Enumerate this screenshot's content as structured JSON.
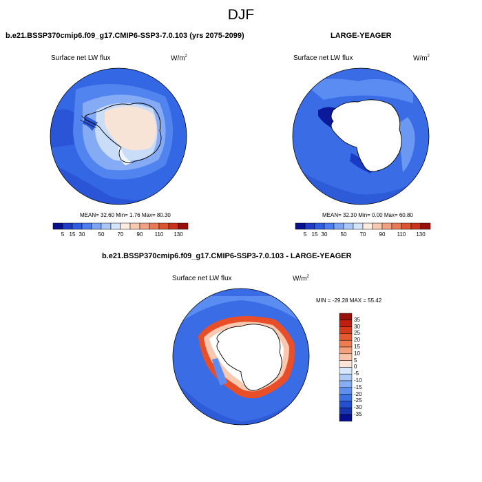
{
  "title": "DJF",
  "panels": [
    {
      "title": "b.e21.BSSP370cmip6.f09_g17.CMIP6-SSP3-7.0.103 (yrs 2075-2099)",
      "variable": "Surface net LW flux",
      "units_base": "W/m",
      "units_exp": "2",
      "stats_text": "MEAN=  32.60  Min=   1.76  Max=  80.30",
      "stats": {
        "mean": 32.6,
        "min": 1.76,
        "max": 80.3
      }
    },
    {
      "title": "LARGE-YEAGER",
      "variable": "Surface net LW flux",
      "units_base": "W/m",
      "units_exp": "2",
      "stats_text": "MEAN=  32.30  Min=   0.00  Max=  60.80",
      "stats": {
        "mean": 32.3,
        "min": 0.0,
        "max": 60.8
      }
    },
    {
      "title": "b.e21.BSSP370cmip6.f09_g17.CMIP6-SSP3-7.0.103 - LARGE-YEAGER",
      "variable": "Surface net LW flux",
      "units_base": "W/m",
      "units_exp": "2",
      "stats_text": "MIN = -29.28 MAX =  55.42",
      "stats": {
        "min": -29.28,
        "max": 55.42
      }
    }
  ],
  "colorbar_abs": {
    "tick_labels": [
      "5",
      "15",
      "30",
      "50",
      "70",
      "90",
      "110",
      "130"
    ],
    "colors": [
      "#08108f",
      "#1e3cc8",
      "#2e5ee0",
      "#4c7ef0",
      "#7ca6f5",
      "#a9c8f8",
      "#d4e4fb",
      "#fdebe0",
      "#f8c8b0",
      "#f2a283",
      "#ea7a55",
      "#dd5530",
      "#c8331a",
      "#98100a"
    ]
  },
  "colorbar_diff": {
    "tick_labels": [
      "35",
      "30",
      "25",
      "20",
      "15",
      "10",
      "5",
      "0",
      "-5",
      "-10",
      "-15",
      "-20",
      "-25",
      "-30",
      "-35"
    ],
    "colors": [
      "#98100a",
      "#bd2010",
      "#d63a1c",
      "#e65a30",
      "#ef7b50",
      "#f59f7c",
      "#f9c4aa",
      "#fde6d8",
      "#d8e7fb",
      "#aecbf8",
      "#86aef5",
      "#5f90f0",
      "#3d70e3",
      "#2550cf",
      "#1534ad",
      "#08108f"
    ]
  },
  "colors": {
    "ocean_deep": "#3465e6",
    "ocean_mid": "#4a7ef0",
    "ice_light": "#c8dcf8",
    "land_blank": "#ffffff",
    "continent_pale": "#f7e4d6"
  }
}
